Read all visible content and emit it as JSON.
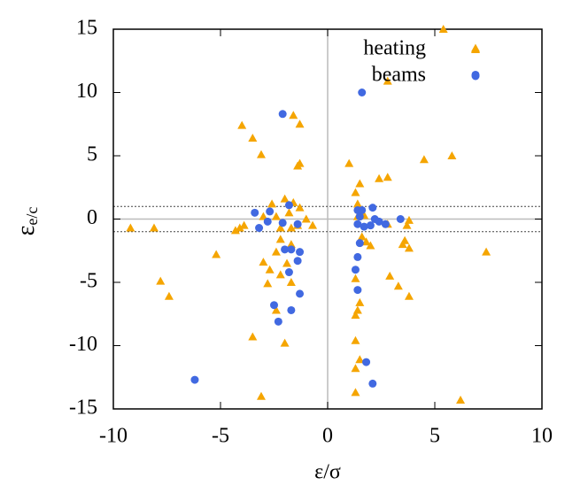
{
  "chart_data": {
    "type": "scatter",
    "xlabel": "ε/σ",
    "ylabel": "ε",
    "ylabel_subscript": "e/c",
    "xlim": [
      -10,
      10
    ],
    "ylim": [
      -15,
      15
    ],
    "xticks": [
      -10,
      -5,
      0,
      5,
      10
    ],
    "yticks": [
      -15,
      -10,
      -5,
      0,
      5,
      10,
      15
    ],
    "legend": "upper right",
    "reference_lines": {
      "dotted_y": [
        -1,
        1
      ],
      "solid_x": [
        0
      ],
      "solid_y": [
        0
      ]
    },
    "series": [
      {
        "name": "heating",
        "color": "#f5a500",
        "marker": "triangle",
        "x": [
          5.4,
          6.9,
          2.8,
          -1.6,
          -1.3,
          -4.0,
          -3.5,
          -3.1,
          5.8,
          4.5,
          -1.3,
          -1.4,
          1.0,
          1.5,
          1.3,
          2.4,
          2.8,
          -2.0,
          -2.6,
          -1.6,
          -2.4,
          -3.0,
          -1.8,
          -1.3,
          -1.0,
          -0.7,
          -1.4,
          -1.7,
          -2.2,
          -3.9,
          -4.1,
          -4.3,
          -8.1,
          -9.2,
          1.4,
          1.7,
          1.4,
          2.8,
          3.8,
          3.7,
          1.6,
          1.8,
          2.0,
          3.6,
          3.5,
          3.8,
          7.4,
          -2.2,
          -1.7,
          -2.4,
          -5.2,
          -3.0,
          -1.9,
          -2.7,
          -2.2,
          -1.7,
          -2.8,
          1.3,
          2.9,
          3.3,
          3.8,
          -7.8,
          -7.4,
          1.5,
          1.4,
          1.3,
          -2.4,
          -3.5,
          -2.0,
          1.3,
          1.5,
          1.3,
          1.3,
          -3.1,
          6.2
        ],
        "values": [
          15.0,
          13.5,
          10.9,
          8.2,
          7.5,
          7.4,
          6.4,
          5.1,
          5.0,
          4.7,
          4.4,
          4.2,
          4.4,
          2.8,
          2.1,
          3.2,
          3.3,
          1.6,
          1.2,
          1.3,
          0.2,
          0.2,
          0.5,
          0.9,
          0.0,
          -0.5,
          -0.5,
          -0.7,
          -0.7,
          -0.5,
          -0.7,
          -0.9,
          -0.7,
          -0.7,
          1.2,
          0.3,
          0.2,
          -0.4,
          -0.1,
          -0.5,
          -1.4,
          -1.8,
          -2.1,
          -1.7,
          -2.0,
          -2.3,
          -2.6,
          -1.6,
          -2.0,
          -2.6,
          -2.8,
          -3.4,
          -3.5,
          -4.0,
          -4.4,
          -5.0,
          -5.1,
          -4.7,
          -4.5,
          -5.3,
          -6.1,
          -4.9,
          -6.1,
          -6.6,
          -7.2,
          -7.6,
          -7.2,
          -9.3,
          -9.8,
          -9.6,
          -11.1,
          -11.8,
          -13.7,
          -14.0,
          -14.3
        ]
      },
      {
        "name": "beams",
        "color": "#4169e1",
        "marker": "circle",
        "x": [
          -2.1,
          1.6,
          6.9,
          -3.4,
          -2.7,
          -1.8,
          -3.2,
          -2.8,
          -2.1,
          -1.4,
          -2.0,
          -1.7,
          -1.3,
          -1.4,
          -1.8,
          -1.3,
          -2.5,
          -1.7,
          -2.3,
          -6.2,
          1.4,
          1.6,
          2.1,
          1.5,
          1.4,
          1.7,
          2.0,
          2.2,
          2.4,
          2.7,
          3.4,
          1.5,
          1.4,
          1.3,
          1.4,
          1.8,
          2.1
        ],
        "values": [
          8.3,
          10.0,
          11.4,
          0.5,
          0.6,
          1.1,
          -0.7,
          -0.2,
          -0.3,
          -0.4,
          -2.4,
          -2.4,
          -2.6,
          -3.3,
          -4.2,
          -5.9,
          -6.8,
          -7.2,
          -8.1,
          -12.7,
          0.7,
          0.7,
          0.9,
          0.2,
          -0.4,
          -0.6,
          -0.5,
          0.0,
          -0.2,
          -0.4,
          0.0,
          -1.9,
          -3.0,
          -4.0,
          -5.6,
          -11.3,
          -13.0
        ]
      }
    ]
  }
}
